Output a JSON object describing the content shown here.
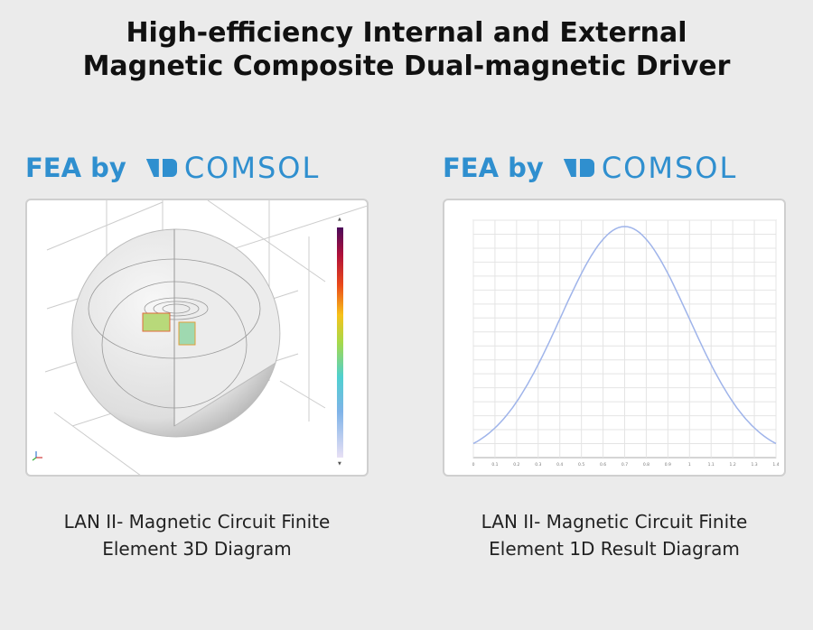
{
  "title": {
    "line1": "High-efficiency Internal and External",
    "line2": "Magnetic Composite Dual-magnetic Driver"
  },
  "logos": [
    {
      "prefix": "FEA by",
      "brand": "COMSOL"
    },
    {
      "prefix": "FEA by",
      "brand": "COMSOL"
    }
  ],
  "left": {
    "caption1": "LAN II- Magnetic Circuit Finite",
    "caption2": "Element 3D Diagram"
  },
  "right": {
    "caption1": "LAN II- Magnetic Circuit Finite",
    "caption2": "Element 1D Result Diagram",
    "plot": {
      "x_ticks": [
        "0",
        "0.1",
        "0.2",
        "0.3",
        "0.4",
        "0.5",
        "0.6",
        "0.7",
        "0.8",
        "0.9",
        "1",
        "1.1",
        "1.2",
        "1.3",
        "1.4"
      ],
      "line_color": "#9fb4ea"
    }
  },
  "colors": {
    "brand": "#2f8fcf",
    "background": "#ebebeb"
  }
}
